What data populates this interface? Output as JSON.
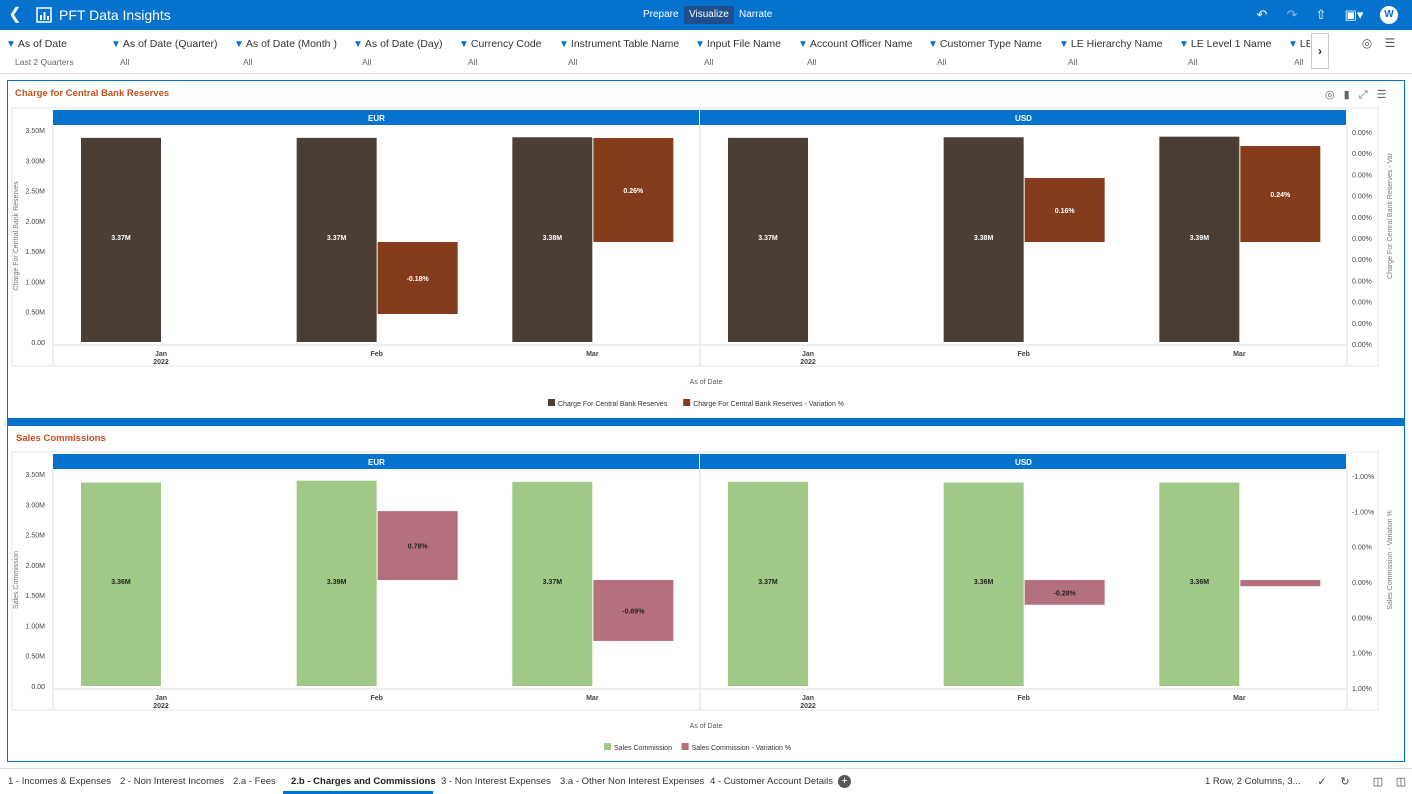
{
  "app": {
    "title": "PFT Data Insights",
    "modes": [
      "Prepare",
      "Visualize",
      "Narrate"
    ],
    "active_mode": "Visualize",
    "user_initial": "W",
    "accent": "#0572ce"
  },
  "filters": [
    {
      "name": "As of Date",
      "value": "Last 2 Quarters"
    },
    {
      "name": "As of Date (Quarter)",
      "value": "All"
    },
    {
      "name": "As of Date (Month )",
      "value": "All"
    },
    {
      "name": "As of Date (Day)",
      "value": "All"
    },
    {
      "name": "Currency Code",
      "value": "All"
    },
    {
      "name": "Instrument Table Name",
      "value": "All"
    },
    {
      "name": "Input File Name",
      "value": "All"
    },
    {
      "name": "Account Officer Name",
      "value": "All"
    },
    {
      "name": "Customer Type Name",
      "value": "All"
    },
    {
      "name": "LE Hierarchy Name",
      "value": "All"
    },
    {
      "name": "LE Level 1 Name",
      "value": "All"
    },
    {
      "name": "LE",
      "value": "All"
    }
  ],
  "chart_data": [
    {
      "type": "bar",
      "title": "Charge for Central Bank Reserves",
      "panels": [
        "EUR",
        "USD"
      ],
      "categories": [
        "Jan",
        "Feb",
        "Mar"
      ],
      "year_label": "2022",
      "xlabel": "As of Date",
      "ylabel": "Charge For Central Bank Reserves",
      "y2label": "Charge For Central Bank Reserves - Var",
      "ylim": [
        0,
        3.5
      ],
      "y_ticks": [
        "0.00",
        "0.50M",
        "1.00M",
        "1.50M",
        "2.00M",
        "2.50M",
        "3.00M",
        "3.50M"
      ],
      "y2_ticks": [
        "0.00%",
        "0.00%",
        "0.00%",
        "0.00%",
        "0.00%",
        "0.00%",
        "0.00%",
        "0.00%",
        "0.00%",
        "0.00%",
        "0.00%"
      ],
      "series": [
        {
          "name": "Charge For Central Bank Reserves",
          "color": "#4a3e35",
          "values": {
            "EUR": [
              3.37,
              3.37,
              3.38
            ],
            "USD": [
              3.37,
              3.38,
              3.39
            ]
          },
          "labels": {
            "EUR": [
              "3.37M",
              "3.37M",
              "3.38M"
            ],
            "USD": [
              "3.37M",
              "3.38M",
              "3.39M"
            ]
          }
        },
        {
          "name": "Charge For Central Bank Reserves - Variation %",
          "color": "#843c1c",
          "values": {
            "EUR": [
              null,
              -0.18,
              0.26
            ],
            "USD": [
              null,
              0.16,
              0.24
            ]
          },
          "labels": {
            "EUR": [
              "",
              "-0.18%",
              "0.26%"
            ],
            "USD": [
              "",
              "0.16%",
              "0.24%"
            ]
          }
        }
      ],
      "y2_range": [
        -0.25,
        0.28
      ],
      "legend": "bottom"
    },
    {
      "type": "bar",
      "title": "Sales Commissions",
      "panels": [
        "EUR",
        "USD"
      ],
      "categories": [
        "Jan",
        "Feb",
        "Mar"
      ],
      "year_label": "2022",
      "xlabel": "As of Date",
      "ylabel": "Sales Commission",
      "y2label": "Sales Commission - Variation %",
      "ylim": [
        0,
        3.5
      ],
      "y_ticks": [
        "0.00",
        "0.50M",
        "1.00M",
        "1.50M",
        "2.00M",
        "2.50M",
        "3.00M",
        "3.50M"
      ],
      "y2_ticks": [
        "-1.00%",
        "-1.00%",
        "0.00%",
        "0.00%",
        "0.00%",
        "1.00%",
        "1.00%"
      ],
      "series": [
        {
          "name": "Sales Commission",
          "color": "#a0c988",
          "values": {
            "EUR": [
              3.36,
              3.39,
              3.37
            ],
            "USD": [
              3.37,
              3.36,
              3.36
            ]
          },
          "labels": {
            "EUR": [
              "3.36M",
              "3.39M",
              "3.37M"
            ],
            "USD": [
              "3.37M",
              "3.36M",
              "3.36M"
            ]
          }
        },
        {
          "name": "Sales Commission - Variation %",
          "color": "#b5707e",
          "values": {
            "EUR": [
              null,
              0.78,
              -0.69
            ],
            "USD": [
              null,
              -0.28,
              -0.07
            ]
          },
          "labels": {
            "EUR": [
              "",
              "0.78%",
              "-0.69%"
            ],
            "USD": [
              "",
              "-0.28%",
              ""
            ]
          }
        }
      ],
      "y2_range": [
        -1.2,
        1.2
      ],
      "legend": "bottom"
    }
  ],
  "tabs": [
    "1 - Incomes & Expenses",
    "2 - Non Interest Incomes",
    "2.a - Fees",
    "2.b - Charges and Commissions",
    "3 - Non Interest Expenses",
    "3.a - Other Non Interest Expenses",
    "4 - Customer Account Details"
  ],
  "active_tab": "2.b - Charges and Commissions",
  "layout_info": "1 Row, 2 Columns, 3..."
}
